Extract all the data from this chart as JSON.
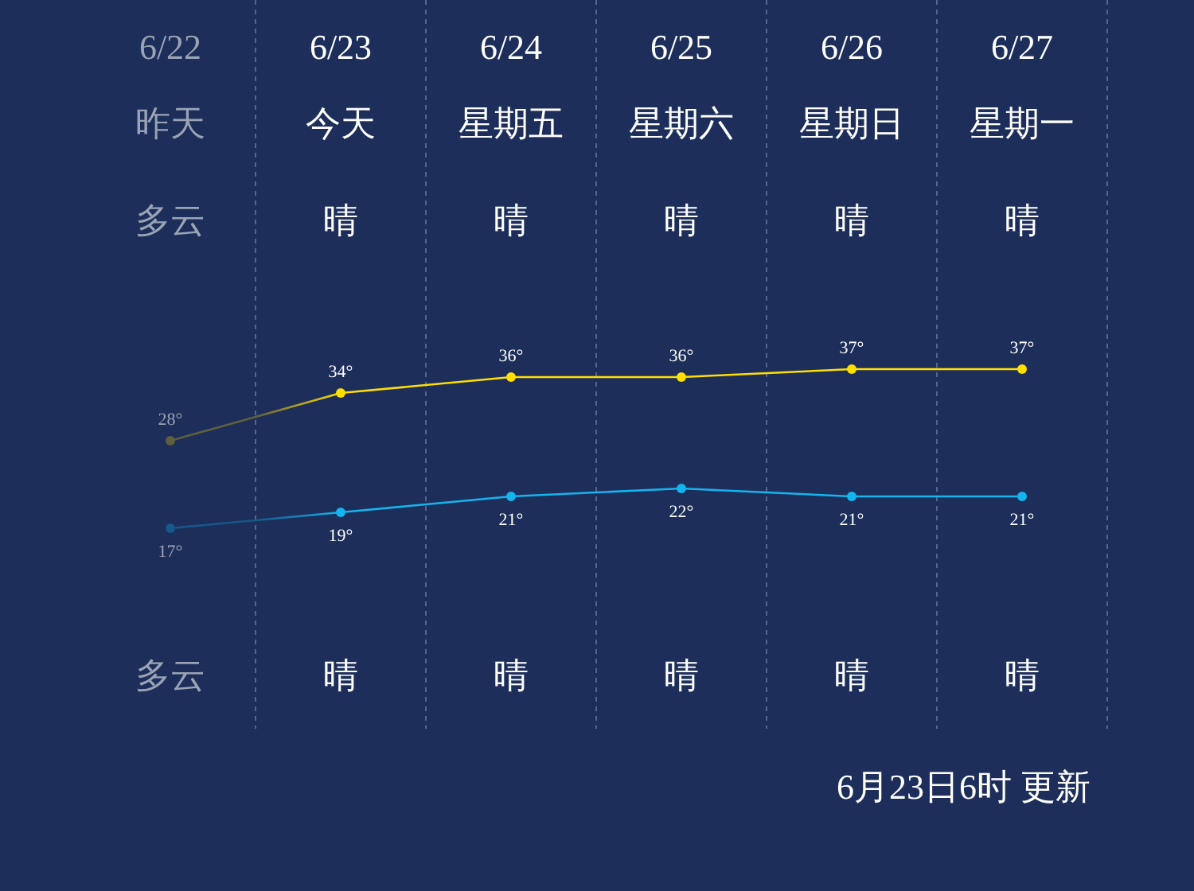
{
  "chart_data": {
    "type": "line",
    "categories": [
      "6/22",
      "6/23",
      "6/24",
      "6/25",
      "6/26",
      "6/27"
    ],
    "series": [
      {
        "colors": [
          "#5e5f3f",
          "#ffde00",
          "#ffde00",
          "#ffde00",
          "#ffde00",
          "#ffde00"
        ],
        "values": [
          28,
          34,
          36,
          36,
          37,
          37
        ],
        "value_labels": [
          "28°",
          "34°",
          "36°",
          "36°",
          "37°",
          "37°"
        ]
      },
      {
        "colors": [
          "#17578a",
          "#14b4ee",
          "#14b4ee",
          "#14b4ee",
          "#14b4ee",
          "#14b4ee"
        ],
        "values": [
          17,
          19,
          21,
          22,
          21,
          21
        ],
        "value_labels": [
          "17°",
          "19°",
          "21°",
          "22°",
          "21°",
          "21°"
        ]
      }
    ],
    "marker": "circle",
    "grid": "x",
    "annotations": [
      "昨天",
      "今天",
      "星期五",
      "星期六",
      "星期日",
      "星期一",
      "多云",
      "晴",
      "晴",
      "晴",
      "晴",
      "晴",
      "多云",
      "晴",
      "晴",
      "晴",
      "晴",
      "晴",
      "6月23日6时 更新"
    ]
  }
}
